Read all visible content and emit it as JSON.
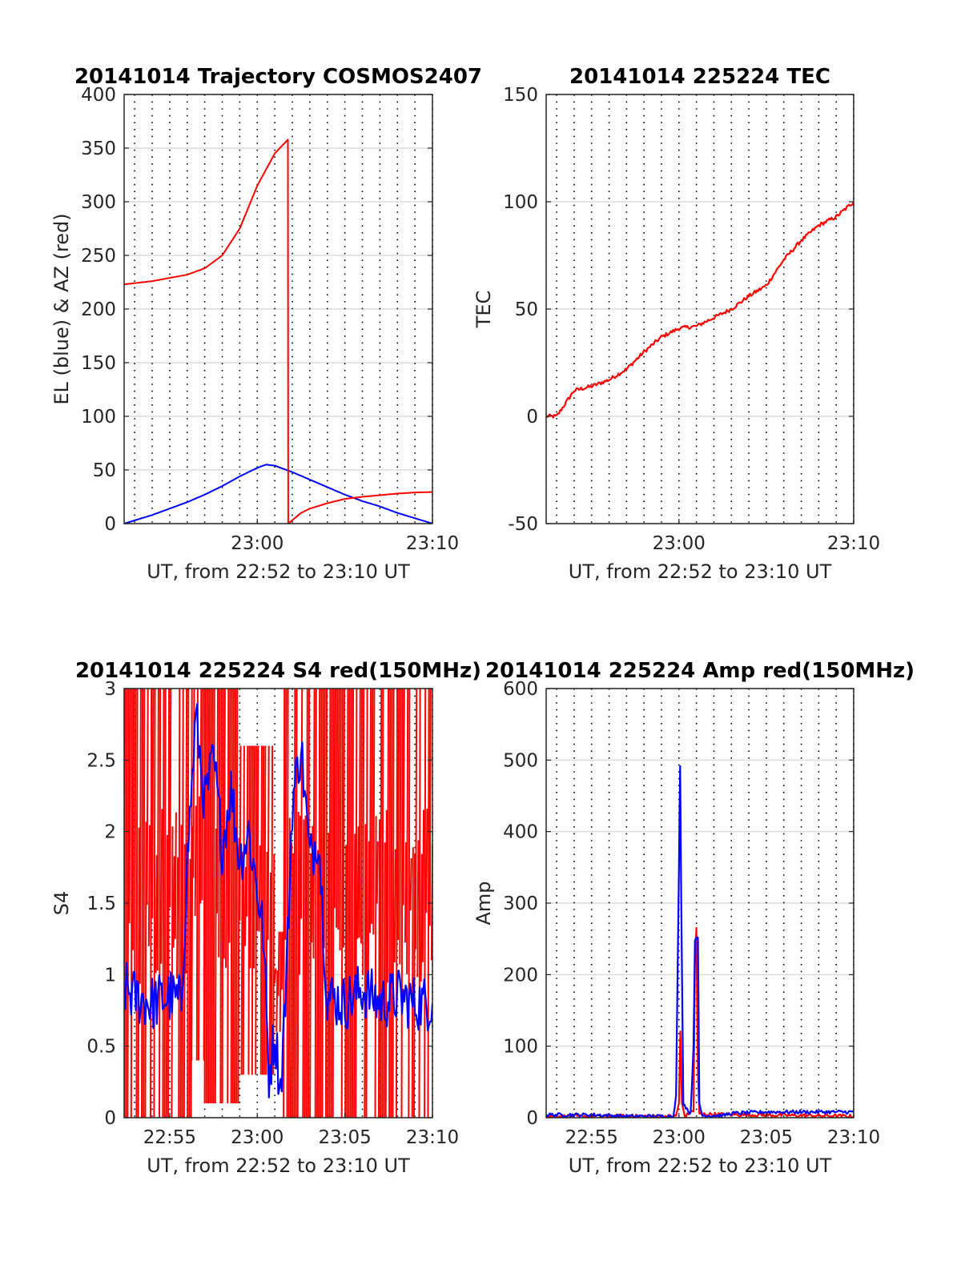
{
  "colors": {
    "el": "#0000ff",
    "az": "#ff0000",
    "tec": "#ff0000",
    "s4_red": "#ff0000",
    "s4_blue": "#0000ff",
    "amp_red": "#ff0000",
    "amp_blue": "#0000ff"
  },
  "chart_data": [
    {
      "type": "line",
      "title": "20141014 Trajectory COSMOS2407",
      "xlabel": "UT, from 22:52 to 23:10 UT",
      "ylabel": "EL (blue) & AZ (red)",
      "xlim": [
        "22:52:24",
        "23:10:00"
      ],
      "ylim": [
        0,
        400
      ],
      "yticks": [
        "0",
        "50",
        "100",
        "150",
        "200",
        "250",
        "300",
        "350",
        "400"
      ],
      "xticks": [
        {
          "t": "23:00",
          "label": "23:00"
        },
        {
          "t": "23:10",
          "label": "23:10"
        }
      ],
      "grid": "dotted vertical every minute, light horizontal",
      "series": [
        {
          "color": "blue",
          "points": [
            [
              "22:52:24",
              0
            ],
            [
              "22:53:00",
              3
            ],
            [
              "22:54:00",
              8
            ],
            [
              "22:55:00",
              14
            ],
            [
              "22:56:00",
              20
            ],
            [
              "22:57:00",
              27
            ],
            [
              "22:58:00",
              35
            ],
            [
              "22:59:00",
              44
            ],
            [
              "23:00:00",
              52
            ],
            [
              "23:00:30",
              55
            ],
            [
              "23:01:00",
              54
            ],
            [
              "23:02:00",
              48
            ],
            [
              "23:03:00",
              41
            ],
            [
              "23:04:00",
              34
            ],
            [
              "23:05:00",
              27
            ],
            [
              "23:06:00",
              21
            ],
            [
              "23:07:00",
              16
            ],
            [
              "23:08:00",
              10
            ],
            [
              "23:09:00",
              5
            ],
            [
              "23:10:00",
              0
            ]
          ]
        },
        {
          "color": "red",
          "points": [
            [
              "22:52:24",
              223
            ],
            [
              "22:54:00",
              226
            ],
            [
              "22:56:00",
              232
            ],
            [
              "22:57:00",
              238
            ],
            [
              "22:58:00",
              250
            ],
            [
              "22:59:00",
              275
            ],
            [
              "23:00:00",
              315
            ],
            [
              "23:01:00",
              345
            ],
            [
              "23:01:45",
              358
            ],
            [
              "23:01:46",
              0
            ],
            [
              "23:02:30",
              10
            ],
            [
              "23:03:00",
              14
            ],
            [
              "23:04:00",
              19
            ],
            [
              "23:05:00",
              23
            ],
            [
              "23:06:00",
              25
            ],
            [
              "23:07:00",
              26.5
            ],
            [
              "23:08:00",
              28
            ],
            [
              "23:09:00",
              29
            ],
            [
              "23:10:00",
              29.5
            ]
          ]
        }
      ]
    },
    {
      "type": "line",
      "title": "20141014 225224 TEC",
      "xlabel": "UT, from 22:52 to 23:10 UT",
      "ylabel": "TEC",
      "xlim": [
        "22:52:24",
        "23:10:00"
      ],
      "ylim": [
        -50,
        150
      ],
      "yticks": [
        "-50",
        "0",
        "50",
        "100",
        "150"
      ],
      "xticks": [
        {
          "t": "23:00",
          "label": "23:00"
        },
        {
          "t": "23:10",
          "label": "23:10"
        }
      ],
      "grid": "dotted vertical every minute, light horizontal",
      "series": [
        {
          "color": "red",
          "points": [
            [
              "22:52:24",
              0
            ],
            [
              "22:53:00",
              0
            ],
            [
              "22:54:00",
              12
            ],
            [
              "22:55:00",
              14
            ],
            [
              "22:56:00",
              17
            ],
            [
              "22:57:00",
              22
            ],
            [
              "22:58:00",
              30
            ],
            [
              "22:59:00",
              37
            ],
            [
              "23:00:00",
              41
            ],
            [
              "23:01:00",
              42
            ],
            [
              "23:02:00",
              46
            ],
            [
              "23:03:00",
              50
            ],
            [
              "23:04:00",
              56
            ],
            [
              "23:05:00",
              61
            ],
            [
              "23:06:00",
              73
            ],
            [
              "23:07:00",
              82
            ],
            [
              "23:08:00",
              89
            ],
            [
              "23:09:00",
              93
            ],
            [
              "23:10:00",
              100
            ]
          ]
        }
      ]
    },
    {
      "type": "line",
      "title": "20141014 225224 S4 red(150MHz)",
      "xlabel": "UT, from 22:52 to 23:10 UT",
      "ylabel": "S4",
      "xlim": [
        "22:52:24",
        "23:10:00"
      ],
      "ylim": [
        0,
        3
      ],
      "yticks": [
        "0",
        "0.5",
        "1",
        "1.5",
        "2",
        "2.5",
        "3"
      ],
      "xticks": [
        {
          "t": "22:55",
          "label": "22:55"
        },
        {
          "t": "23:00",
          "label": "23:00"
        },
        {
          "t": "23:05",
          "label": "23:05"
        },
        {
          "t": "23:10",
          "label": "23:10"
        }
      ],
      "grid": "dotted vertical every minute, light horizontal",
      "series": [
        {
          "color": "red",
          "description_points": [
            [
              "22:52:24",
              0
            ],
            [
              "22:56:00",
              0
            ],
            [
              "22:58:00",
              0
            ],
            [
              "23:00:00",
              0
            ],
            [
              "23:02:00",
              0
            ],
            [
              "23:04:00",
              0
            ],
            [
              "23:10:00",
              0
            ]
          ],
          "spans": [
            {
              "from": "22:52:24",
              "to": "22:56:15",
              "min": 0,
              "max": 3
            },
            {
              "from": "22:56:15",
              "to": "22:57:00",
              "min": 0.4,
              "max": 3
            },
            {
              "from": "22:57:00",
              "to": "22:59:00",
              "min": 0.1,
              "max": 3
            },
            {
              "from": "22:59:00",
              "to": "23:01:00",
              "min": 0.3,
              "max": 2.6
            },
            {
              "from": "23:01:00",
              "to": "23:01:30",
              "min": 0.6,
              "max": 1.3
            },
            {
              "from": "23:01:30",
              "to": "23:10:00",
              "min": 0,
              "max": 3
            }
          ]
        },
        {
          "color": "blue",
          "points": [
            [
              "22:52:24",
              0.9
            ],
            [
              "22:53:00",
              0.85
            ],
            [
              "22:54:00",
              0.8
            ],
            [
              "22:55:00",
              0.85
            ],
            [
              "22:55:40",
              0.8
            ],
            [
              "22:56:00",
              1.8
            ],
            [
              "22:56:30",
              2.8
            ],
            [
              "22:57:00",
              2.2
            ],
            [
              "22:57:30",
              2.5
            ],
            [
              "22:58:00",
              1.9
            ],
            [
              "22:58:30",
              2.3
            ],
            [
              "22:59:00",
              1.8
            ],
            [
              "22:59:30",
              2.0
            ],
            [
              "23:00:00",
              1.6
            ],
            [
              "23:00:20",
              1.3
            ],
            [
              "23:00:40",
              0.3
            ],
            [
              "23:01:00",
              0.6
            ],
            [
              "23:01:20",
              0.2
            ],
            [
              "23:01:40",
              1.0
            ],
            [
              "23:02:00",
              2.2
            ],
            [
              "23:02:30",
              2.6
            ],
            [
              "23:03:00",
              1.8
            ],
            [
              "23:03:30",
              2.0
            ],
            [
              "23:03:50",
              1.2
            ],
            [
              "23:04:00",
              0.85
            ],
            [
              "23:05:00",
              0.8
            ],
            [
              "23:06:00",
              0.9
            ],
            [
              "23:07:00",
              0.8
            ],
            [
              "23:08:00",
              0.85
            ],
            [
              "23:09:00",
              0.8
            ],
            [
              "23:10:00",
              0.8
            ]
          ]
        }
      ]
    },
    {
      "type": "line",
      "title": "20141014 225224 Amp red(150MHz)",
      "xlabel": "UT, from 22:52 to 23:10 UT",
      "ylabel": "Amp",
      "xlim": [
        "22:52:24",
        "23:10:00"
      ],
      "ylim": [
        0,
        600
      ],
      "yticks": [
        "0",
        "100",
        "200",
        "300",
        "400",
        "500",
        "600"
      ],
      "xticks": [
        {
          "t": "22:55",
          "label": "22:55"
        },
        {
          "t": "23:00",
          "label": "23:00"
        },
        {
          "t": "23:05",
          "label": "23:05"
        },
        {
          "t": "23:10",
          "label": "23:10"
        }
      ],
      "grid": "dotted vertical every minute, light horizontal",
      "series": [
        {
          "color": "red",
          "points": [
            [
              "22:52:24",
              2
            ],
            [
              "22:59:50",
              2
            ],
            [
              "23:00:00",
              20
            ],
            [
              "23:00:05",
              120
            ],
            [
              "23:00:10",
              20
            ],
            [
              "23:00:20",
              2
            ],
            [
              "23:00:50",
              10
            ],
            [
              "23:00:55",
              220
            ],
            [
              "23:01:00",
              265
            ],
            [
              "23:01:05",
              60
            ],
            [
              "23:01:10",
              5
            ],
            [
              "23:10:00",
              2
            ]
          ]
        },
        {
          "color": "blue",
          "points": [
            [
              "22:52:24",
              4
            ],
            [
              "22:55:00",
              4
            ],
            [
              "22:57:00",
              2
            ],
            [
              "22:59:40",
              2
            ],
            [
              "22:59:50",
              30
            ],
            [
              "23:00:00",
              350
            ],
            [
              "23:00:04",
              490
            ],
            [
              "23:00:08",
              300
            ],
            [
              "23:00:15",
              20
            ],
            [
              "23:00:40",
              5
            ],
            [
              "23:00:50",
              100
            ],
            [
              "23:00:55",
              250
            ],
            [
              "23:01:05",
              250
            ],
            [
              "23:01:10",
              20
            ],
            [
              "23:01:20",
              3
            ],
            [
              "23:02:30",
              3
            ],
            [
              "23:03:00",
              6
            ],
            [
              "23:05:00",
              8
            ],
            [
              "23:07:00",
              8
            ],
            [
              "23:10:00",
              8
            ]
          ]
        }
      ]
    }
  ]
}
